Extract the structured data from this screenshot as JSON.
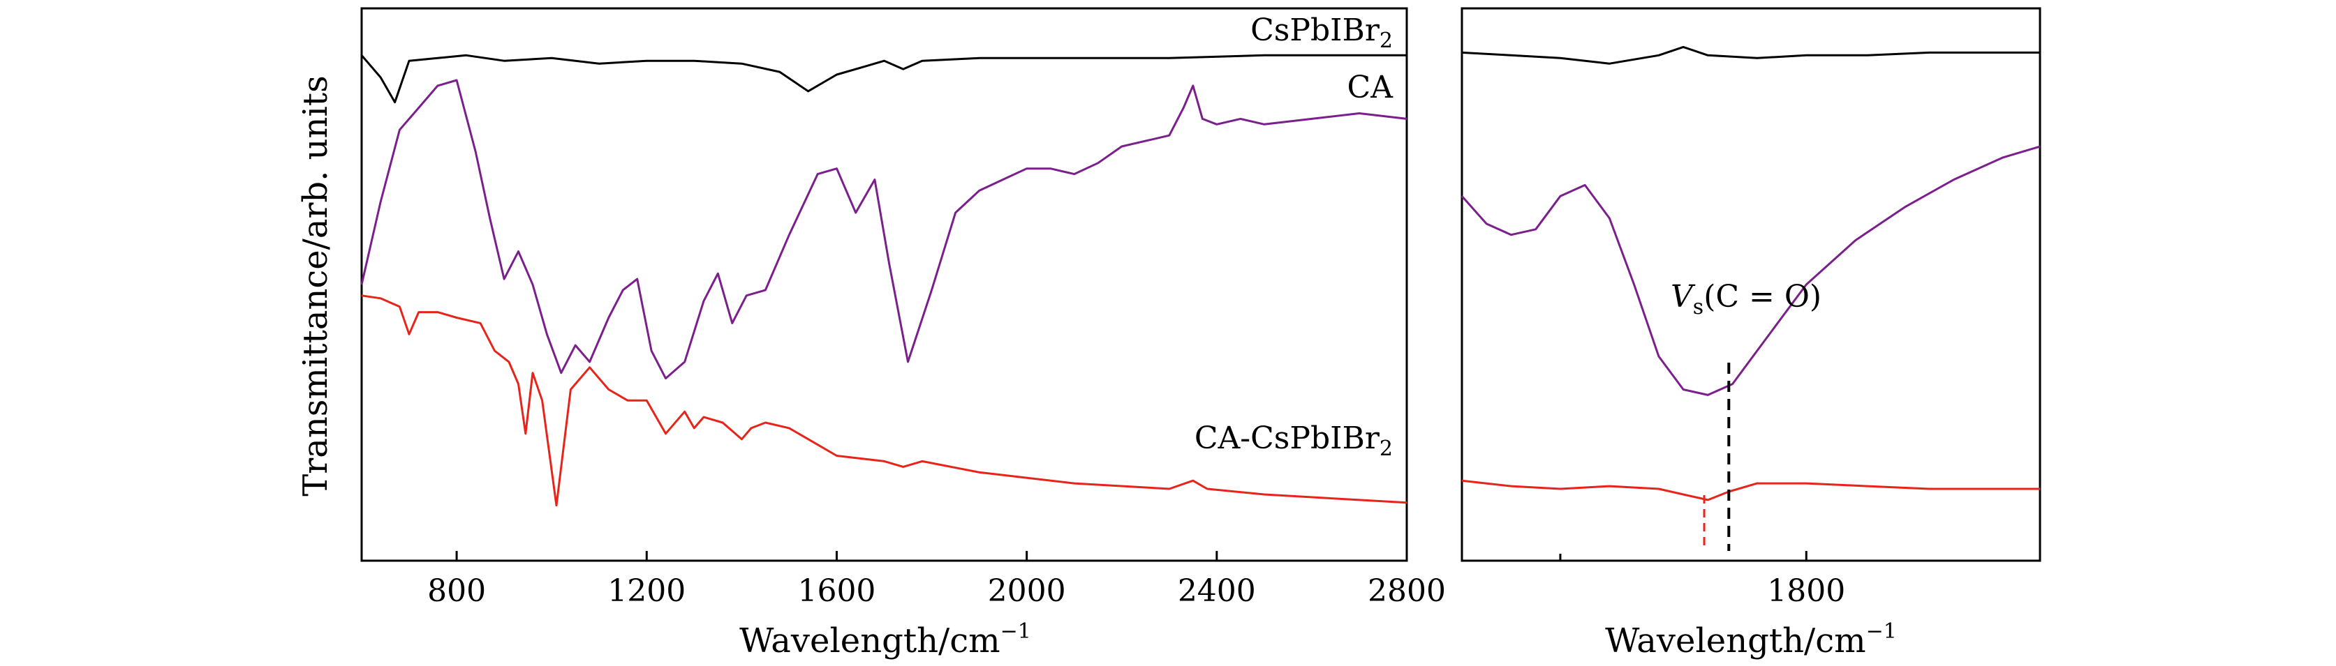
{
  "chart_data": [
    {
      "type": "line",
      "panel": "left",
      "xlabel": "Wavelength/cm",
      "xlabel_exponent": "−1",
      "ylabel": "Transmittance/arb. units",
      "xlim": [
        600,
        2800
      ],
      "ylim": [
        0,
        10
      ],
      "x_ticks": [
        800,
        1200,
        1600,
        2000,
        2400,
        2800
      ],
      "x_tick_labels": [
        "800",
        "1200",
        "1600",
        "2000",
        "2400",
        "2800"
      ],
      "grid": false,
      "series": [
        {
          "name": "CsPbIBr",
          "name_subscript": "2",
          "color": "#000000",
          "x": [
            600,
            640,
            670,
            700,
            760,
            820,
            900,
            1000,
            1100,
            1200,
            1300,
            1400,
            1480,
            1540,
            1600,
            1660,
            1700,
            1740,
            1780,
            1900,
            2100,
            2300,
            2500,
            2700,
            2800
          ],
          "y": [
            9.15,
            8.75,
            8.3,
            9.05,
            9.1,
            9.15,
            9.05,
            9.1,
            9.0,
            9.05,
            9.05,
            9.0,
            8.85,
            8.5,
            8.8,
            8.95,
            9.05,
            8.9,
            9.05,
            9.1,
            9.1,
            9.1,
            9.15,
            9.15,
            9.15
          ]
        },
        {
          "name": "CA",
          "color": "#7a1f8c",
          "x": [
            600,
            640,
            680,
            720,
            760,
            800,
            840,
            870,
            900,
            930,
            960,
            990,
            1020,
            1050,
            1080,
            1120,
            1150,
            1180,
            1210,
            1240,
            1280,
            1320,
            1350,
            1380,
            1410,
            1450,
            1500,
            1560,
            1600,
            1640,
            1680,
            1710,
            1750,
            1800,
            1850,
            1900,
            1950,
            2000,
            2050,
            2100,
            2150,
            2200,
            2250,
            2300,
            2330,
            2350,
            2370,
            2400,
            2450,
            2500,
            2600,
            2700,
            2800
          ],
          "y": [
            5.0,
            6.5,
            7.8,
            8.2,
            8.6,
            8.7,
            7.4,
            6.2,
            5.1,
            5.6,
            5.0,
            4.1,
            3.4,
            3.9,
            3.6,
            4.4,
            4.9,
            5.1,
            3.8,
            3.3,
            3.6,
            4.7,
            5.2,
            4.3,
            4.8,
            4.9,
            5.9,
            7.0,
            7.1,
            6.3,
            6.9,
            5.4,
            3.6,
            4.9,
            6.3,
            6.7,
            6.9,
            7.1,
            7.1,
            7.0,
            7.2,
            7.5,
            7.6,
            7.7,
            8.2,
            8.6,
            8.0,
            7.9,
            8.0,
            7.9,
            8.0,
            8.1,
            8.0
          ]
        },
        {
          "name": "CA-CsPbIBr",
          "name_subscript": "2",
          "color": "#e8241a",
          "x": [
            600,
            640,
            680,
            700,
            720,
            760,
            800,
            850,
            880,
            910,
            930,
            945,
            960,
            980,
            1010,
            1040,
            1080,
            1120,
            1160,
            1200,
            1240,
            1280,
            1300,
            1320,
            1360,
            1400,
            1420,
            1450,
            1500,
            1600,
            1700,
            1740,
            1780,
            1900,
            2100,
            2300,
            2350,
            2380,
            2500,
            2700,
            2800
          ],
          "y": [
            4.8,
            4.75,
            4.6,
            4.1,
            4.5,
            4.5,
            4.4,
            4.3,
            3.8,
            3.6,
            3.2,
            2.3,
            3.4,
            2.9,
            1.0,
            3.1,
            3.5,
            3.1,
            2.9,
            2.9,
            2.3,
            2.7,
            2.4,
            2.6,
            2.5,
            2.2,
            2.4,
            2.5,
            2.4,
            1.9,
            1.8,
            1.7,
            1.8,
            1.6,
            1.4,
            1.3,
            1.45,
            1.3,
            1.2,
            1.1,
            1.05
          ]
        }
      ]
    },
    {
      "type": "line",
      "panel": "right",
      "xlabel": "Wavelength/cm",
      "xlabel_exponent": "−1",
      "xlim": [
        1520,
        1990
      ],
      "ylim": [
        0,
        10
      ],
      "x_ticks": [
        1800
      ],
      "x_tick_labels": [
        "1800"
      ],
      "minor_ticks": [
        1600
      ],
      "grid": false,
      "annotation": {
        "text_main": "V",
        "text_subscript": "s",
        "text_rest": "(C = O)",
        "peak_x": 1737,
        "dashed_line_x": 1737,
        "dashed_line_x_red": 1717
      },
      "series": [
        {
          "name": "CsPbIBr2",
          "color": "#000000",
          "x": [
            1520,
            1560,
            1600,
            1640,
            1680,
            1700,
            1720,
            1760,
            1800,
            1850,
            1900,
            1950,
            1990
          ],
          "y": [
            9.2,
            9.15,
            9.1,
            9.0,
            9.15,
            9.3,
            9.15,
            9.1,
            9.15,
            9.15,
            9.2,
            9.2,
            9.2
          ]
        },
        {
          "name": "CA",
          "color": "#7a1f8c",
          "x": [
            1520,
            1540,
            1560,
            1580,
            1600,
            1620,
            1640,
            1660,
            1680,
            1700,
            1720,
            1740,
            1760,
            1780,
            1800,
            1840,
            1880,
            1920,
            1960,
            1990
          ],
          "y": [
            6.6,
            6.1,
            5.9,
            6.0,
            6.6,
            6.8,
            6.2,
            5.0,
            3.7,
            3.1,
            3.0,
            3.2,
            3.8,
            4.4,
            5.0,
            5.8,
            6.4,
            6.9,
            7.3,
            7.5
          ]
        },
        {
          "name": "CA-CsPbIBr2",
          "color": "#e8241a",
          "x": [
            1520,
            1560,
            1600,
            1640,
            1680,
            1700,
            1720,
            1737,
            1760,
            1800,
            1850,
            1900,
            1950,
            1990
          ],
          "y": [
            1.45,
            1.35,
            1.3,
            1.35,
            1.3,
            1.2,
            1.1,
            1.25,
            1.4,
            1.4,
            1.35,
            1.3,
            1.3,
            1.3
          ]
        }
      ]
    }
  ]
}
